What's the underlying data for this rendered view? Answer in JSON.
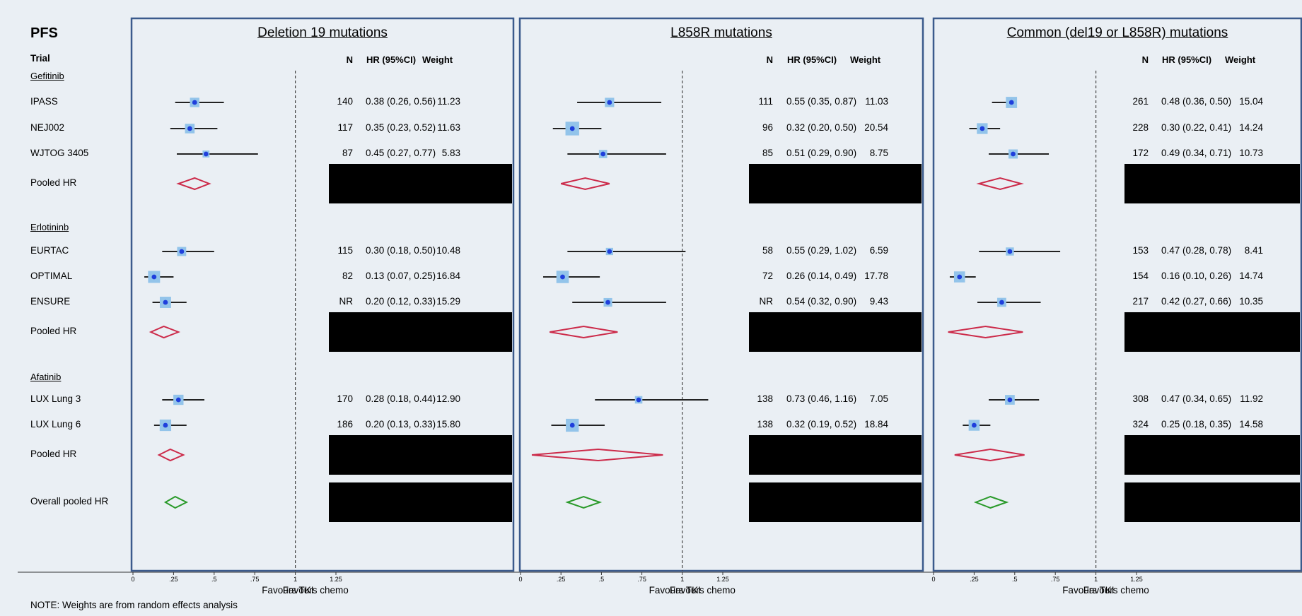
{
  "colors": {
    "frame": "#3b5a8c",
    "pooled_subgroup": "#cc2b4a",
    "pooled_overall": "#2a9a2a",
    "point": "#1f3fdc",
    "box": "#93c4ea",
    "ci": "#222222"
  },
  "figure": {
    "title": "PFS",
    "row_header": "Trial",
    "note": "NOTE: Weights are from random effects analysis",
    "favours_left": "Favours TKI",
    "favours_right": "Favours chemo",
    "col_headers": {
      "n": "N",
      "hr": "HR (95%CI)",
      "weight": "Weight"
    },
    "groups": [
      "Gefitinib",
      "Erlotininb",
      "Afatinib"
    ],
    "row_labels": [
      "IPASS",
      "NEJ002",
      "WJTOG 3405",
      "Pooled HR",
      "EURTAC",
      "OPTIMAL",
      "ENSURE",
      "Pooled HR",
      "LUX Lung 3",
      "LUX Lung 6",
      "Pooled HR",
      "Overall pooled HR"
    ]
  },
  "chart_data": [
    {
      "type": "forest",
      "title": "Deletion 19 mutations",
      "x_ticks": [
        "0",
        ".25",
        ".5",
        ".75",
        "1",
        "1.25"
      ],
      "xlim": [
        0,
        1.25
      ],
      "null_line": 1,
      "studies": [
        {
          "name": "IPASS",
          "group": "Gefitinib",
          "n": "140",
          "hr": 0.38,
          "lo": 0.26,
          "hi": 0.56,
          "weight": "11.23",
          "hr_text": "0.38 (0.26, 0.56)"
        },
        {
          "name": "NEJ002",
          "group": "Gefitinib",
          "n": "117",
          "hr": 0.35,
          "lo": 0.23,
          "hi": 0.52,
          "weight": "11.63",
          "hr_text": "0.35 (0.23, 0.52)"
        },
        {
          "name": "WJTOG 3405",
          "group": "Gefitinib",
          "n": "87",
          "hr": 0.45,
          "lo": 0.27,
          "hi": 0.77,
          "weight": "5.83",
          "hr_text": "0.45 (0.27, 0.77)"
        },
        {
          "name": "EURTAC",
          "group": "Erlotininb",
          "n": "115",
          "hr": 0.3,
          "lo": 0.18,
          "hi": 0.5,
          "weight": "10.48",
          "hr_text": "0.30 (0.18, 0.50)"
        },
        {
          "name": "OPTIMAL",
          "group": "Erlotininb",
          "n": "82",
          "hr": 0.13,
          "lo": 0.07,
          "hi": 0.25,
          "weight": "16.84",
          "hr_text": "0.13 (0.07, 0.25)"
        },
        {
          "name": "ENSURE",
          "group": "Erlotininb",
          "n": "NR",
          "hr": 0.2,
          "lo": 0.12,
          "hi": 0.33,
          "weight": "15.29",
          "hr_text": "0.20 (0.12, 0.33)"
        },
        {
          "name": "LUX Lung 3",
          "group": "Afatinib",
          "n": "170",
          "hr": 0.28,
          "lo": 0.18,
          "hi": 0.44,
          "weight": "12.90",
          "hr_text": "0.28 (0.18, 0.44)"
        },
        {
          "name": "LUX Lung 6",
          "group": "Afatinib",
          "n": "186",
          "hr": 0.2,
          "lo": 0.13,
          "hi": 0.33,
          "weight": "15.80",
          "hr_text": "0.20 (0.13, 0.33)"
        }
      ],
      "pooled": [
        {
          "name": "Pooled HR",
          "group": "Gefitinib",
          "hr": 0.38,
          "lo": 0.28,
          "hi": 0.47
        },
        {
          "name": "Pooled HR",
          "group": "Erlotininb",
          "hr": 0.19,
          "lo": 0.11,
          "hi": 0.28
        },
        {
          "name": "Pooled HR",
          "group": "Afatinib",
          "hr": 0.23,
          "lo": 0.16,
          "hi": 0.31
        },
        {
          "name": "Overall pooled HR",
          "group": "Overall",
          "hr": 0.26,
          "lo": 0.2,
          "hi": 0.33
        }
      ]
    },
    {
      "type": "forest",
      "title": "L858R mutations",
      "x_ticks": [
        "0",
        ".25",
        ".5",
        ".75",
        "1",
        "1.25"
      ],
      "xlim": [
        0,
        1.25
      ],
      "null_line": 1,
      "studies": [
        {
          "name": "IPASS",
          "group": "Gefitinib",
          "n": "111",
          "hr": 0.55,
          "lo": 0.35,
          "hi": 0.87,
          "weight": "11.03",
          "hr_text": "0.55 (0.35, 0.87)"
        },
        {
          "name": "NEJ002",
          "group": "Gefitinib",
          "n": "96",
          "hr": 0.32,
          "lo": 0.2,
          "hi": 0.5,
          "weight": "20.54",
          "hr_text": "0.32 (0.20, 0.50)"
        },
        {
          "name": "WJTOG 3405",
          "group": "Gefitinib",
          "n": "85",
          "hr": 0.51,
          "lo": 0.29,
          "hi": 0.9,
          "weight": "8.75",
          "hr_text": "0.51 (0.29, 0.90)"
        },
        {
          "name": "EURTAC",
          "group": "Erlotininb",
          "n": "58",
          "hr": 0.55,
          "lo": 0.29,
          "hi": 1.02,
          "weight": "6.59",
          "hr_text": "0.55 (0.29, 1.02)"
        },
        {
          "name": "OPTIMAL",
          "group": "Erlotininb",
          "n": "72",
          "hr": 0.26,
          "lo": 0.14,
          "hi": 0.49,
          "weight": "17.78",
          "hr_text": "0.26 (0.14, 0.49)"
        },
        {
          "name": "ENSURE",
          "group": "Erlotininb",
          "n": "NR",
          "hr": 0.54,
          "lo": 0.32,
          "hi": 0.9,
          "weight": "9.43",
          "hr_text": "0.54 (0.32, 0.90)"
        },
        {
          "name": "LUX Lung 3",
          "group": "Afatinib",
          "n": "138",
          "hr": 0.73,
          "lo": 0.46,
          "hi": 1.16,
          "weight": "7.05",
          "hr_text": "0.73 (0.46, 1.16)"
        },
        {
          "name": "LUX Lung 6",
          "group": "Afatinib",
          "n": "138",
          "hr": 0.32,
          "lo": 0.19,
          "hi": 0.52,
          "weight": "18.84",
          "hr_text": "0.32 (0.19, 0.52)"
        }
      ],
      "pooled": [
        {
          "name": "Pooled HR",
          "group": "Gefitinib",
          "hr": 0.4,
          "lo": 0.25,
          "hi": 0.55
        },
        {
          "name": "Pooled HR",
          "group": "Erlotininb",
          "hr": 0.39,
          "lo": 0.18,
          "hi": 0.6
        },
        {
          "name": "Pooled HR",
          "group": "Afatinib",
          "hr": 0.48,
          "lo": 0.07,
          "hi": 0.88
        },
        {
          "name": "Overall pooled HR",
          "group": "Overall",
          "hr": 0.39,
          "lo": 0.29,
          "hi": 0.49
        }
      ]
    },
    {
      "type": "forest",
      "title": "Common (del19 or L858R) mutations",
      "x_ticks": [
        "0",
        ".25",
        ".5",
        ".75",
        "1",
        "1.25"
      ],
      "xlim": [
        0,
        1.25
      ],
      "null_line": 1,
      "studies": [
        {
          "name": "IPASS",
          "group": "Gefitinib",
          "n": "261",
          "hr": 0.48,
          "lo": 0.36,
          "hi": 0.5,
          "weight": "15.04",
          "hr_text": "0.48 (0.36, 0.50)"
        },
        {
          "name": "NEJ002",
          "group": "Gefitinib",
          "n": "228",
          "hr": 0.3,
          "lo": 0.22,
          "hi": 0.41,
          "weight": "14.24",
          "hr_text": "0.30 (0.22, 0.41)"
        },
        {
          "name": "WJTOG 3405",
          "group": "Gefitinib",
          "n": "172",
          "hr": 0.49,
          "lo": 0.34,
          "hi": 0.71,
          "weight": "10.73",
          "hr_text": "0.49 (0.34, 0.71)"
        },
        {
          "name": "EURTAC",
          "group": "Erlotininb",
          "n": "153",
          "hr": 0.47,
          "lo": 0.28,
          "hi": 0.78,
          "weight": "8.41",
          "hr_text": "0.47 (0.28, 0.78)"
        },
        {
          "name": "OPTIMAL",
          "group": "Erlotininb",
          "n": "154",
          "hr": 0.16,
          "lo": 0.1,
          "hi": 0.26,
          "weight": "14.74",
          "hr_text": "0.16 (0.10, 0.26)"
        },
        {
          "name": "ENSURE",
          "group": "Erlotininb",
          "n": "217",
          "hr": 0.42,
          "lo": 0.27,
          "hi": 0.66,
          "weight": "10.35",
          "hr_text": "0.42 (0.27, 0.66)"
        },
        {
          "name": "LUX Lung 3",
          "group": "Afatinib",
          "n": "308",
          "hr": 0.47,
          "lo": 0.34,
          "hi": 0.65,
          "weight": "11.92",
          "hr_text": "0.47 (0.34, 0.65)"
        },
        {
          "name": "LUX Lung 6",
          "group": "Afatinib",
          "n": "324",
          "hr": 0.25,
          "lo": 0.18,
          "hi": 0.35,
          "weight": "14.58",
          "hr_text": "0.25 (0.18, 0.35)"
        }
      ],
      "pooled": [
        {
          "name": "Pooled HR",
          "group": "Gefitinib",
          "hr": 0.41,
          "lo": 0.28,
          "hi": 0.54
        },
        {
          "name": "Pooled HR",
          "group": "Erlotininb",
          "hr": 0.32,
          "lo": 0.09,
          "hi": 0.55
        },
        {
          "name": "Pooled HR",
          "group": "Afatinib",
          "hr": 0.35,
          "lo": 0.13,
          "hi": 0.56
        },
        {
          "name": "Overall pooled HR",
          "group": "Overall",
          "hr": 0.35,
          "lo": 0.26,
          "hi": 0.45
        }
      ]
    }
  ]
}
